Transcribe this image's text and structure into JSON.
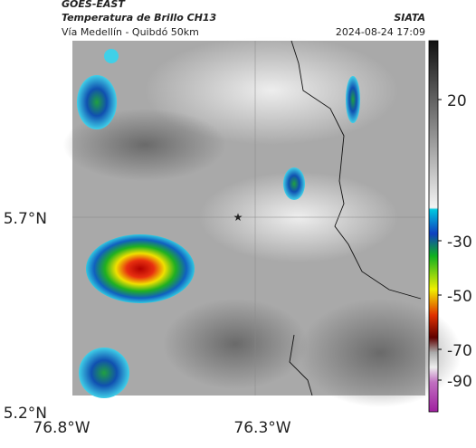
{
  "header": {
    "source": "GOES-EAST",
    "title": "Temperatura de Brillo CH13",
    "subtitle": "Vía Medellín - Quibdó 50km",
    "org": "SIATA",
    "timestamp": "2024-08-24 17:09"
  },
  "map": {
    "x_labels": [
      "76.8°W",
      "76.3°W"
    ],
    "y_labels": [
      "5.7°N",
      "5.2°N"
    ]
  },
  "colorbar": {
    "ticks": [
      20,
      -30,
      -50,
      -70,
      -90
    ]
  }
}
